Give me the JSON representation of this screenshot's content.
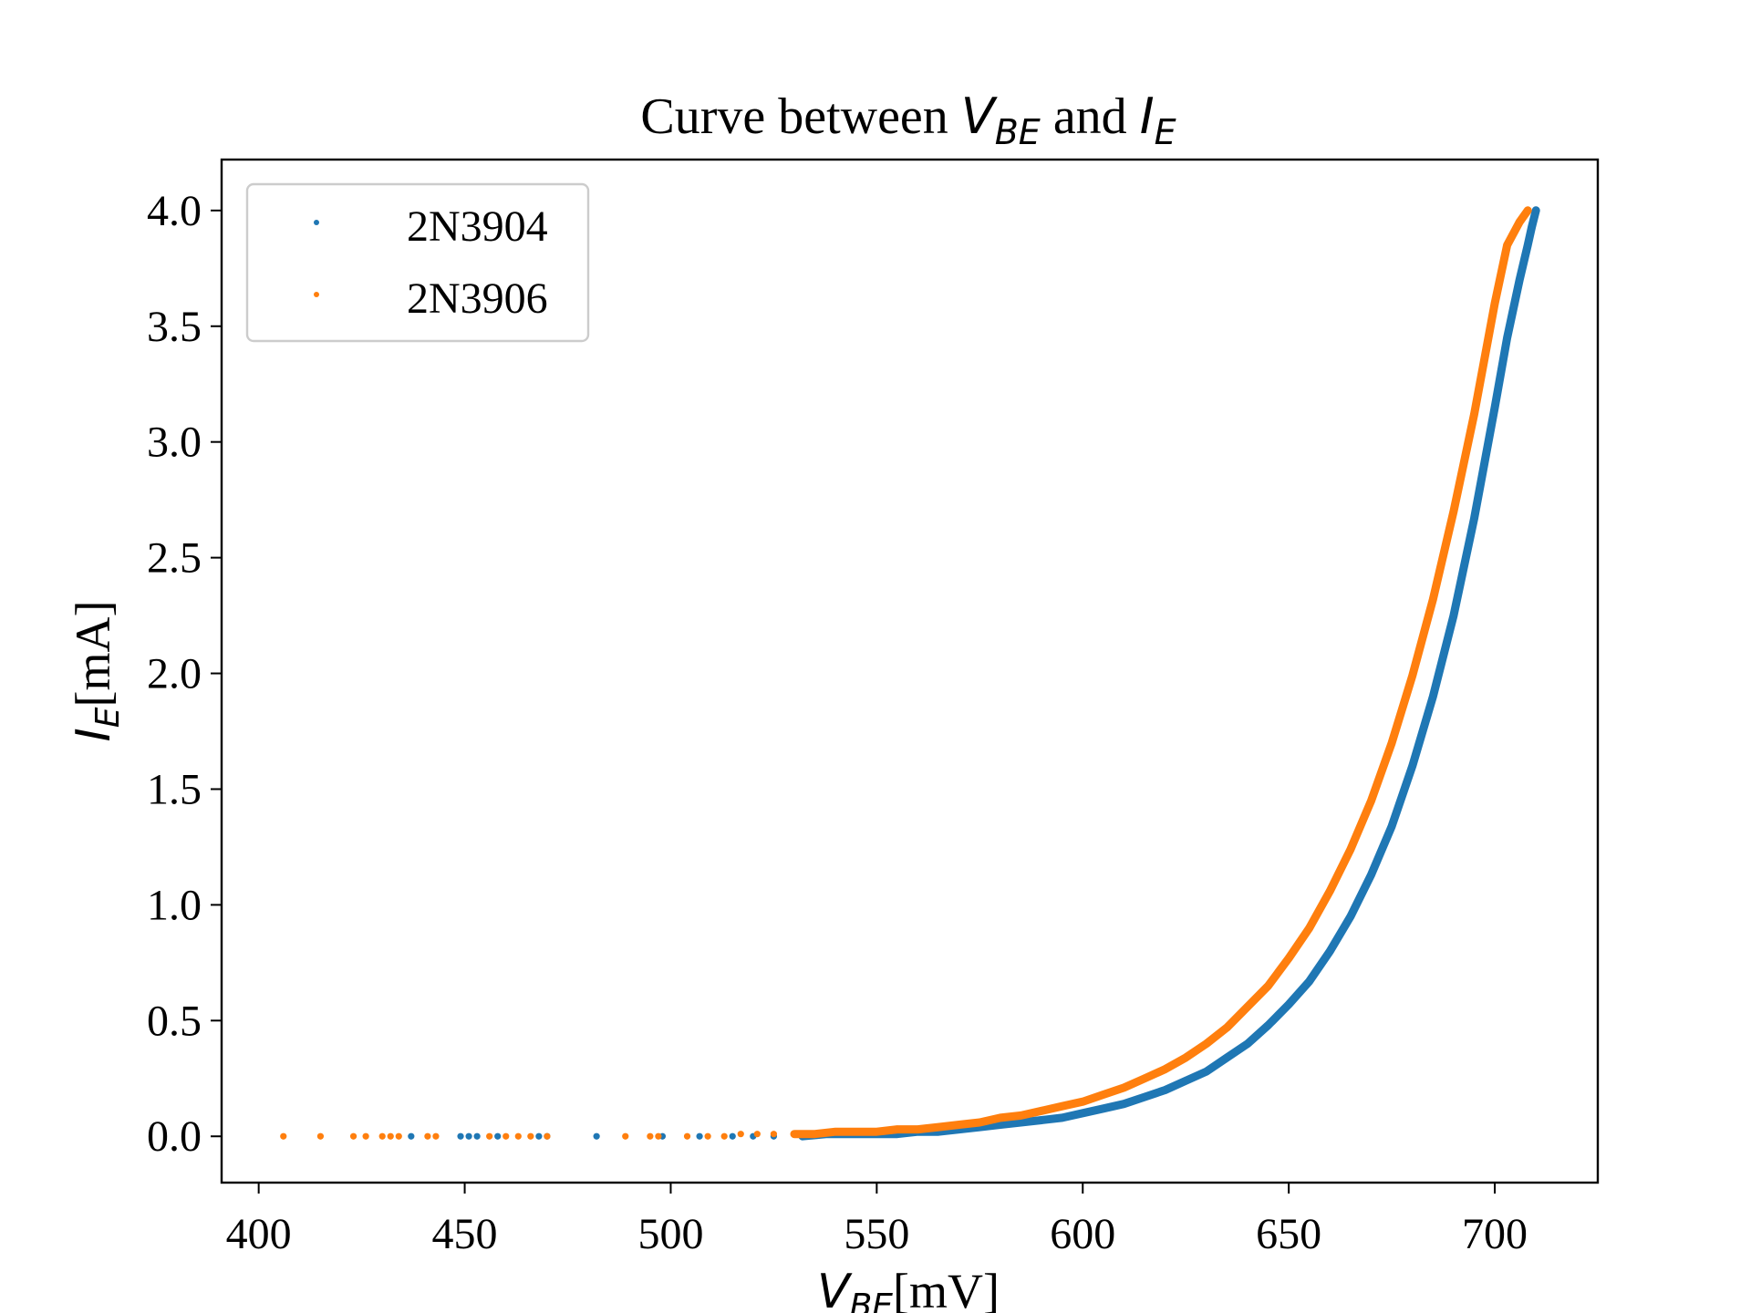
{
  "chart_data": {
    "type": "scatter",
    "title_parts": {
      "prefix": "Curve between ",
      "v_symbol": "V",
      "v_subscript": "BE",
      "middle": " and ",
      "i_symbol": "I",
      "i_subscript": "E"
    },
    "xlabel_parts": {
      "symbol": "V",
      "subscript": "BE",
      "unit": "[mV]"
    },
    "ylabel_parts": {
      "symbol": "I",
      "subscript": "E",
      "unit": "[mA]"
    },
    "xlim": [
      391,
      725
    ],
    "ylim": [
      -0.2,
      4.22
    ],
    "xticks": [
      400,
      450,
      500,
      550,
      600,
      650,
      700
    ],
    "xtick_labels": [
      "400",
      "450",
      "500",
      "550",
      "600",
      "650",
      "700"
    ],
    "yticks": [
      0.0,
      0.5,
      1.0,
      1.5,
      2.0,
      2.5,
      3.0,
      3.5,
      4.0
    ],
    "ytick_labels": [
      "0.0",
      "0.5",
      "1.0",
      "1.5",
      "2.0",
      "2.5",
      "3.0",
      "3.5",
      "4.0"
    ],
    "grid": false,
    "legend_position": "top-left",
    "series": [
      {
        "name": "2N3904",
        "color": "#1f77b4",
        "x": [
          437,
          449,
          451,
          453,
          458,
          468,
          470,
          482,
          498,
          507,
          515,
          520,
          525,
          532,
          538,
          545,
          550,
          555,
          560,
          565,
          570,
          575,
          580,
          585,
          590,
          595,
          600,
          605,
          610,
          615,
          620,
          625,
          630,
          635,
          640,
          645,
          650,
          655,
          660,
          665,
          670,
          675,
          680,
          685,
          690,
          695,
          700,
          703,
          706,
          708,
          709,
          710
        ],
        "y": [
          0.0,
          0.0,
          0.0,
          0.0,
          0.0,
          0.0,
          0.0,
          0.0,
          0.0,
          0.0,
          0.0,
          0.0,
          0.0,
          0.0,
          0.01,
          0.01,
          0.01,
          0.01,
          0.02,
          0.02,
          0.03,
          0.04,
          0.05,
          0.06,
          0.07,
          0.08,
          0.1,
          0.12,
          0.14,
          0.17,
          0.2,
          0.24,
          0.28,
          0.34,
          0.4,
          0.48,
          0.57,
          0.67,
          0.8,
          0.95,
          1.13,
          1.34,
          1.6,
          1.9,
          2.25,
          2.67,
          3.15,
          3.45,
          3.7,
          3.85,
          3.93,
          4.0
        ]
      },
      {
        "name": "2N3906",
        "color": "#ff7f0e",
        "x": [
          406,
          415,
          423,
          426,
          430,
          432,
          434,
          441,
          443,
          456,
          460,
          463,
          466,
          470,
          489,
          495,
          497,
          504,
          509,
          513,
          517,
          521,
          525,
          530,
          535,
          540,
          545,
          550,
          555,
          560,
          565,
          570,
          575,
          580,
          585,
          590,
          595,
          600,
          605,
          610,
          615,
          620,
          625,
          630,
          635,
          640,
          645,
          650,
          655,
          660,
          665,
          670,
          675,
          680,
          685,
          690,
          695,
          700,
          703,
          706,
          708
        ],
        "y": [
          0.0,
          0.0,
          0.0,
          0.0,
          0.0,
          0.0,
          0.0,
          0.0,
          0.0,
          0.0,
          0.0,
          0.0,
          0.0,
          0.0,
          0.0,
          0.0,
          0.0,
          0.0,
          0.0,
          0.0,
          0.01,
          0.01,
          0.01,
          0.01,
          0.01,
          0.02,
          0.02,
          0.02,
          0.03,
          0.03,
          0.04,
          0.05,
          0.06,
          0.08,
          0.09,
          0.11,
          0.13,
          0.15,
          0.18,
          0.21,
          0.25,
          0.29,
          0.34,
          0.4,
          0.47,
          0.56,
          0.65,
          0.77,
          0.9,
          1.06,
          1.24,
          1.45,
          1.7,
          1.99,
          2.32,
          2.7,
          3.12,
          3.6,
          3.85,
          3.95,
          4.0
        ]
      }
    ]
  }
}
